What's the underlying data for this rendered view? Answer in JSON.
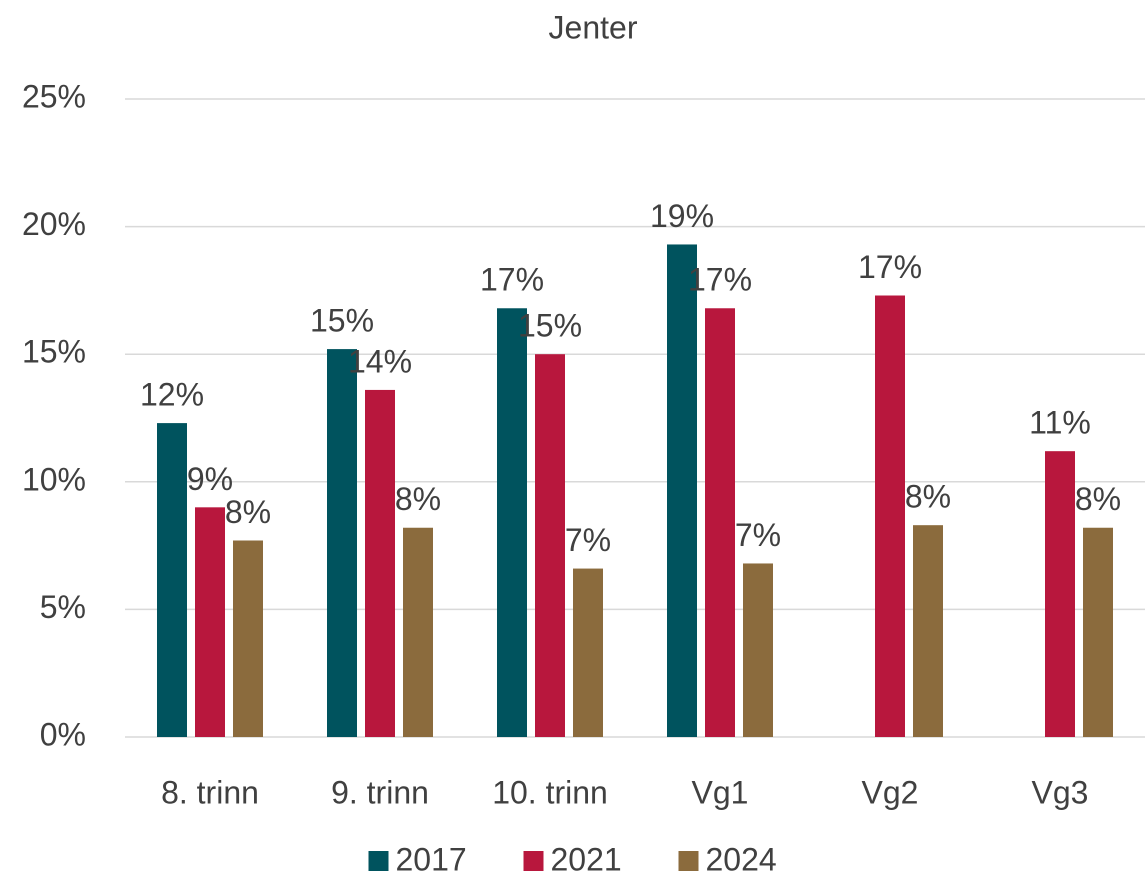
{
  "chart_data": {
    "type": "bar",
    "title": "Jenter",
    "categories": [
      "8. trinn",
      "9. trinn",
      "10. trinn",
      "Vg1",
      "Vg2",
      "Vg3"
    ],
    "series": [
      {
        "name": "2017",
        "color": "#00535e",
        "values": [
          12.3,
          15.2,
          16.8,
          19.3,
          null,
          null
        ],
        "value_labels": [
          "12%",
          "15%",
          "17%",
          "19%",
          null,
          null
        ]
      },
      {
        "name": "2021",
        "color": "#b8173d",
        "values": [
          9.0,
          13.6,
          15.0,
          16.8,
          17.3,
          11.2
        ],
        "value_labels": [
          "9%",
          "14%",
          "15%",
          "17%",
          "17%",
          "11%"
        ]
      },
      {
        "name": "2024",
        "color": "#8b6b3d",
        "values": [
          7.7,
          8.2,
          6.6,
          6.8,
          8.3,
          8.2
        ],
        "value_labels": [
          "8%",
          "8%",
          "7%",
          "7%",
          "8%",
          "8%"
        ]
      }
    ],
    "ylim": [
      0,
      25
    ],
    "yticks": [
      {
        "value": 0,
        "label": "0%"
      },
      {
        "value": 5,
        "label": "5%"
      },
      {
        "value": 10,
        "label": "10%"
      },
      {
        "value": 15,
        "label": "15%"
      },
      {
        "value": 20,
        "label": "20%"
      },
      {
        "value": 25,
        "label": "25%"
      }
    ],
    "grid": true,
    "legend": "bottom"
  }
}
